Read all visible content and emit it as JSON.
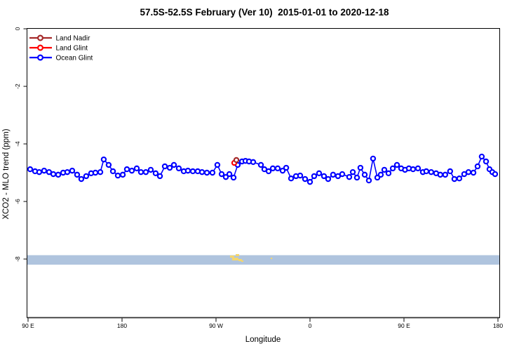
{
  "page": {
    "background": "#FFFFFF"
  },
  "chart_data": {
    "type": "line",
    "title": "57.5S-52.5S February (Ver 10)  2015-01-01 to 2020-12-18",
    "xlabel": "Longitude",
    "ylabel": "XCO2 - MLO trend (ppm)",
    "x_axis": {
      "tick_labels": [
        "90 E",
        "180",
        "90 W",
        "0",
        "90 E",
        "180"
      ],
      "tick_deg": [
        0,
        90,
        180,
        270,
        360,
        450
      ],
      "range_deg": [
        0,
        450
      ]
    },
    "y_axis": {
      "tick_labels": [
        "0",
        "-2",
        "-4",
        "-6",
        "-8"
      ],
      "tick_values": [
        0,
        -2,
        -4,
        -6,
        -8
      ],
      "range": [
        0.05,
        -10.05
      ]
    },
    "grid": false,
    "legend": {
      "position": "top-left",
      "items": [
        {
          "label": "Land Nadir",
          "color": "#A52A2A"
        },
        {
          "label": "Land Glint",
          "color": "#FF0000"
        },
        {
          "label": "Ocean Glint",
          "color": "#0000FF"
        }
      ]
    },
    "series": [
      {
        "name": "Land Nadir",
        "color": "#A52A2A",
        "marker": "open-circle",
        "line": false,
        "points": [
          [
            199.5,
            -4.56
          ]
        ]
      },
      {
        "name": "Land Glint",
        "color": "#FF0000",
        "marker": "open-circle",
        "line": false,
        "points": [
          [
            197.5,
            -4.66
          ]
        ]
      },
      {
        "name": "Ocean Glint",
        "color": "#0000FF",
        "marker": "open-circle",
        "line": true,
        "points": [
          [
            2.0,
            -4.88
          ],
          [
            6.7,
            -4.95
          ],
          [
            10.7,
            -4.98
          ],
          [
            15.4,
            -4.93
          ],
          [
            20.1,
            -4.98
          ],
          [
            24.2,
            -5.05
          ],
          [
            28.9,
            -5.07
          ],
          [
            33.6,
            -5.0
          ],
          [
            37.6,
            -4.98
          ],
          [
            42.3,
            -4.93
          ],
          [
            47.0,
            -5.07
          ],
          [
            51.0,
            -5.22
          ],
          [
            55.7,
            -5.12
          ],
          [
            60.4,
            -5.02
          ],
          [
            64.5,
            -5.0
          ],
          [
            69.2,
            -4.98
          ],
          [
            72.5,
            -4.54
          ],
          [
            77.2,
            -4.73
          ],
          [
            81.3,
            -4.95
          ],
          [
            86.0,
            -5.1
          ],
          [
            90.7,
            -5.07
          ],
          [
            94.7,
            -4.88
          ],
          [
            99.4,
            -4.93
          ],
          [
            104.1,
            -4.85
          ],
          [
            108.1,
            -4.98
          ],
          [
            112.8,
            -4.98
          ],
          [
            117.5,
            -4.9
          ],
          [
            122.2,
            -5.02
          ],
          [
            126.3,
            -5.12
          ],
          [
            131.0,
            -4.78
          ],
          [
            135.7,
            -4.83
          ],
          [
            139.7,
            -4.73
          ],
          [
            144.4,
            -4.85
          ],
          [
            149.1,
            -4.95
          ],
          [
            153.1,
            -4.93
          ],
          [
            157.8,
            -4.95
          ],
          [
            162.5,
            -4.95
          ],
          [
            166.6,
            -4.98
          ],
          [
            171.3,
            -5.0
          ],
          [
            176.6,
            -5.0
          ],
          [
            181.3,
            -4.73
          ],
          [
            185.4,
            -5.05
          ],
          [
            189.4,
            -5.15
          ],
          [
            192.8,
            -5.05
          ],
          [
            196.8,
            -5.17
          ],
          [
            200.8,
            -4.73
          ],
          [
            204.9,
            -4.61
          ],
          [
            208.2,
            -4.59
          ],
          [
            211.6,
            -4.61
          ],
          [
            215.6,
            -4.63
          ],
          [
            223.0,
            -4.73
          ],
          [
            226.3,
            -4.88
          ],
          [
            230.4,
            -4.95
          ],
          [
            234.4,
            -4.85
          ],
          [
            239.1,
            -4.85
          ],
          [
            243.8,
            -4.93
          ],
          [
            247.2,
            -4.83
          ],
          [
            251.9,
            -5.2
          ],
          [
            256.6,
            -5.12
          ],
          [
            260.6,
            -5.1
          ],
          [
            265.3,
            -5.22
          ],
          [
            270.0,
            -5.32
          ],
          [
            274.0,
            -5.12
          ],
          [
            278.7,
            -5.02
          ],
          [
            283.4,
            -5.12
          ],
          [
            287.4,
            -5.22
          ],
          [
            292.1,
            -5.07
          ],
          [
            296.8,
            -5.12
          ],
          [
            300.9,
            -5.05
          ],
          [
            307.6,
            -5.15
          ],
          [
            311.0,
            -4.98
          ],
          [
            315.0,
            -5.17
          ],
          [
            318.3,
            -4.83
          ],
          [
            322.4,
            -5.07
          ],
          [
            326.4,
            -5.27
          ],
          [
            330.4,
            -4.51
          ],
          [
            334.5,
            -5.17
          ],
          [
            337.8,
            -5.07
          ],
          [
            341.2,
            -4.9
          ],
          [
            345.2,
            -5.02
          ],
          [
            349.3,
            -4.85
          ],
          [
            353.3,
            -4.73
          ],
          [
            357.3,
            -4.85
          ],
          [
            361.0,
            -4.9
          ],
          [
            364.7,
            -4.85
          ],
          [
            368.7,
            -4.88
          ],
          [
            373.4,
            -4.85
          ],
          [
            378.1,
            -4.98
          ],
          [
            381.4,
            -4.95
          ],
          [
            386.1,
            -4.98
          ],
          [
            390.8,
            -5.02
          ],
          [
            394.8,
            -5.07
          ],
          [
            399.5,
            -5.07
          ],
          [
            404.2,
            -4.95
          ],
          [
            408.3,
            -5.22
          ],
          [
            413.0,
            -5.2
          ],
          [
            417.7,
            -5.05
          ],
          [
            421.8,
            -4.98
          ],
          [
            426.5,
            -5.0
          ],
          [
            430.5,
            -4.78
          ],
          [
            434.5,
            -4.44
          ],
          [
            438.6,
            -4.61
          ],
          [
            441.9,
            -4.88
          ],
          [
            444.6,
            -4.98
          ],
          [
            447.3,
            -5.05
          ]
        ]
      }
    ],
    "map_strip": {
      "band_color": "#AFC4DE",
      "band_ppm": -8,
      "land_color": "#F4D66E",
      "land_rects": [
        [
          193.4,
          364,
          4.0,
          3
        ],
        [
          195.4,
          367,
          6.0,
          4
        ],
        [
          198.8,
          362,
          3.4,
          3
        ],
        [
          201.5,
          369,
          3.4,
          3
        ],
        [
          204.2,
          371,
          2.0,
          2
        ],
        [
          232.4,
          367,
          1.4,
          2
        ]
      ]
    }
  }
}
